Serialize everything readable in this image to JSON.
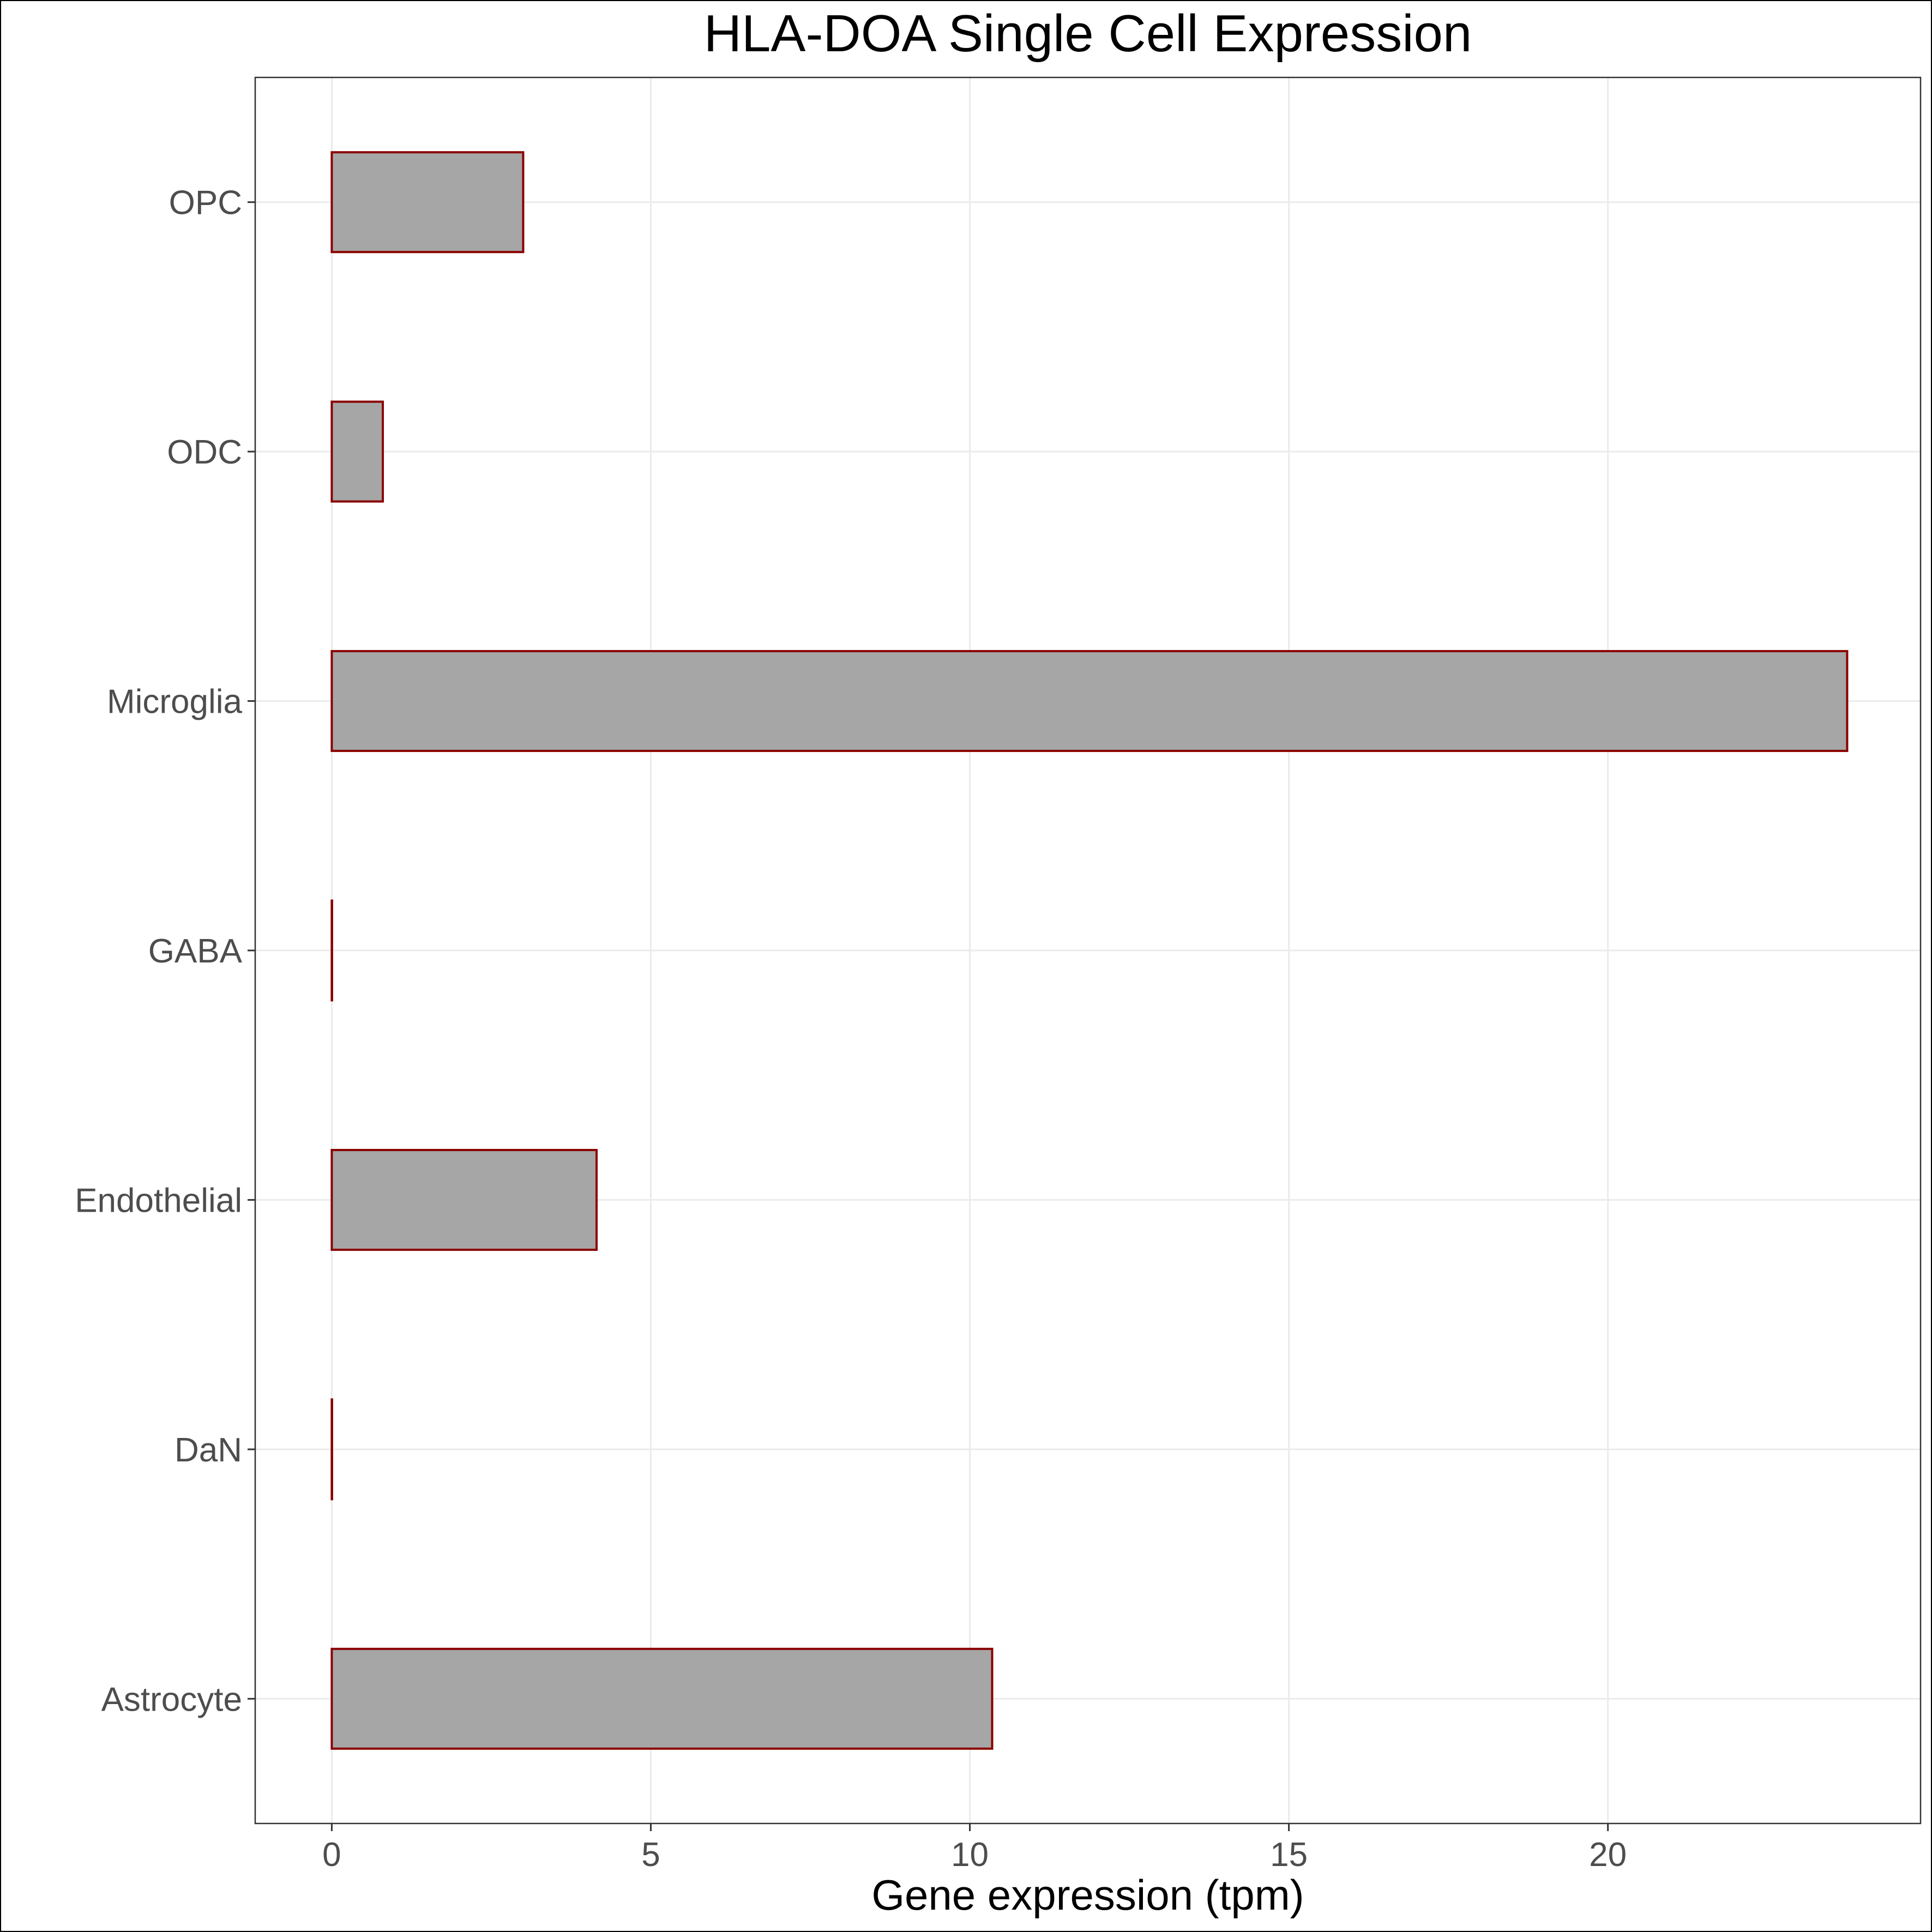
{
  "chart_data": {
    "type": "bar",
    "orientation": "horizontal",
    "title": "HLA-DOA Single Cell Expression",
    "xlabel": "Gene expression (tpm)",
    "ylabel": "",
    "categories": [
      "Astrocyte",
      "DaN",
      "Endothelial",
      "GABA",
      "Microglia",
      "ODC",
      "OPC"
    ],
    "values": [
      10.35,
      0.0,
      4.15,
      0.0,
      23.75,
      0.8,
      3.0
    ],
    "xlim": [
      -1.2,
      24.9
    ],
    "xticks": [
      0,
      5,
      10,
      15,
      20
    ],
    "xtick_labels": [
      "0",
      "5",
      "10",
      "15",
      "20"
    ],
    "grid": true,
    "legend": "none",
    "colors": {
      "bar_fill": "#a6a6a6",
      "bar_stroke": "#8b0000",
      "grid": "#ebebeb",
      "panel_border": "#333333",
      "tick_text": "#4d4d4d"
    }
  }
}
